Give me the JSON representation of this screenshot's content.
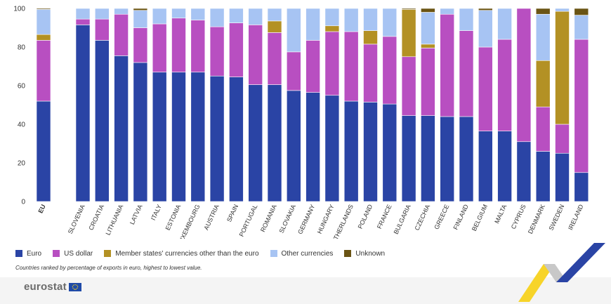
{
  "chart_data": {
    "type": "bar",
    "stacked": true,
    "categories": [
      "EU",
      "SLOVENIA",
      "CROATIA",
      "LITHUANIA",
      "LATVIA",
      "ITALY",
      "ESTONIA",
      "LUXEMBOURG",
      "AUSTRIA",
      "SPAIN",
      "PORTUGAL",
      "ROMANIA",
      "SLOVAKIA",
      "GERMANY",
      "HUNGARY",
      "NETHERLANDS",
      "POLAND",
      "FRANCE",
      "BULGARIA",
      "CZECHIA",
      "GREECE",
      "FINLAND",
      "BELGIUM",
      "MALTA",
      "CYPRUS",
      "DENMARK",
      "SWEDEN",
      "IRELAND"
    ],
    "series": [
      {
        "name": "Euro",
        "color": "#2a44a5",
        "values": [
          52.0,
          91.5,
          83.5,
          75.5,
          72.0,
          67.0,
          67.0,
          67.0,
          65.0,
          64.5,
          60.5,
          60.5,
          57.5,
          56.5,
          55.0,
          52.0,
          51.5,
          50.5,
          44.5,
          44.5,
          44.0,
          44.0,
          36.5,
          36.5,
          31.0,
          26.0,
          25.0,
          15.0
        ]
      },
      {
        "name": "US dollar",
        "color": "#b84fc1",
        "values": [
          31.5,
          3.0,
          11.0,
          21.5,
          18.0,
          25.0,
          28.0,
          27.0,
          25.5,
          28.0,
          31.0,
          27.0,
          20.0,
          27.0,
          33.0,
          36.0,
          30.0,
          35.0,
          30.5,
          35.0,
          53.0,
          44.5,
          43.5,
          47.5,
          69.0,
          23.0,
          15.0,
          69.0
        ]
      },
      {
        "name": "Member states' currencies other than the euro",
        "color": "#b39124",
        "values": [
          3.0,
          0.0,
          0.0,
          0.0,
          0.0,
          0.0,
          0.0,
          0.0,
          0.0,
          0.0,
          0.0,
          6.0,
          0.0,
          0.0,
          3.0,
          0.0,
          7.0,
          0.0,
          24.5,
          2.0,
          0.0,
          0.0,
          0.0,
          0.0,
          0.0,
          24.0,
          58.5,
          0.0
        ]
      },
      {
        "name": "Other currencies",
        "color": "#a7c4f3",
        "values": [
          13.0,
          5.5,
          5.5,
          3.0,
          9.0,
          8.0,
          5.0,
          6.0,
          9.5,
          7.5,
          8.5,
          6.5,
          22.5,
          16.5,
          9.0,
          12.0,
          11.5,
          14.5,
          0.0,
          16.5,
          3.0,
          11.5,
          19.0,
          16.0,
          0.0,
          24.0,
          1.5,
          12.5
        ]
      },
      {
        "name": "Unknown",
        "color": "#6a5414",
        "values": [
          0.5,
          0.0,
          0.0,
          0.0,
          1.0,
          0.0,
          0.0,
          0.0,
          0.0,
          0.0,
          0.0,
          0.0,
          0.0,
          0.0,
          0.0,
          0.0,
          0.0,
          0.0,
          0.5,
          2.0,
          0.0,
          0.0,
          1.0,
          0.0,
          0.0,
          3.0,
          0.0,
          3.5
        ]
      }
    ],
    "ylim": [
      0,
      100
    ],
    "yticks": [
      0,
      20,
      40,
      60,
      80,
      100
    ],
    "grid": false,
    "legend_position": "bottom-left",
    "note": "Countries ranked by percentage of exports in euro, highest to lowest value."
  },
  "legend_labels": [
    "Euro",
    "US dollar",
    "Member states' currencies other than the euro",
    "Other currencies",
    "Unknown"
  ],
  "footer": {
    "logo_text": "eurostat",
    "brand_colors": [
      "#f7d21e",
      "#2a44a5",
      "#c8c8c8"
    ]
  }
}
